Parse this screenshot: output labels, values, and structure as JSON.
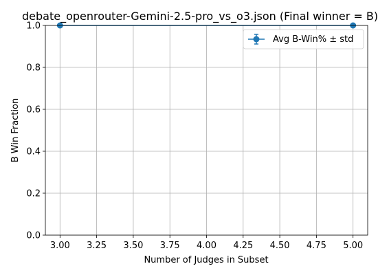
{
  "chart_data": {
    "type": "line",
    "title": "debate_openrouter-Gemini-2.5-pro_vs_o3.json (Final winner = B)",
    "xlabel": "Number of Judges in Subset",
    "ylabel": "B Win Fraction",
    "xlim": [
      2.9,
      5.1
    ],
    "ylim": [
      0.0,
      1.0
    ],
    "xticks": [
      3.0,
      3.25,
      3.5,
      3.75,
      4.0,
      4.25,
      4.5,
      4.75,
      5.0
    ],
    "xtick_labels": [
      "3.00",
      "3.25",
      "3.50",
      "3.75",
      "4.00",
      "4.25",
      "4.50",
      "4.75",
      "5.00"
    ],
    "yticks": [
      0.0,
      0.2,
      0.4,
      0.6,
      0.8,
      1.0
    ],
    "ytick_labels": [
      "0.0",
      "0.2",
      "0.4",
      "0.6",
      "0.8",
      "1.0"
    ],
    "grid": true,
    "legend_position": "top-right",
    "series": [
      {
        "name": "Avg B-Win% ± std",
        "color": "#1f77b4",
        "marker": "circle",
        "x": [
          3,
          5
        ],
        "y": [
          1.0,
          1.0
        ],
        "std": [
          0.0,
          0.0
        ]
      }
    ]
  }
}
